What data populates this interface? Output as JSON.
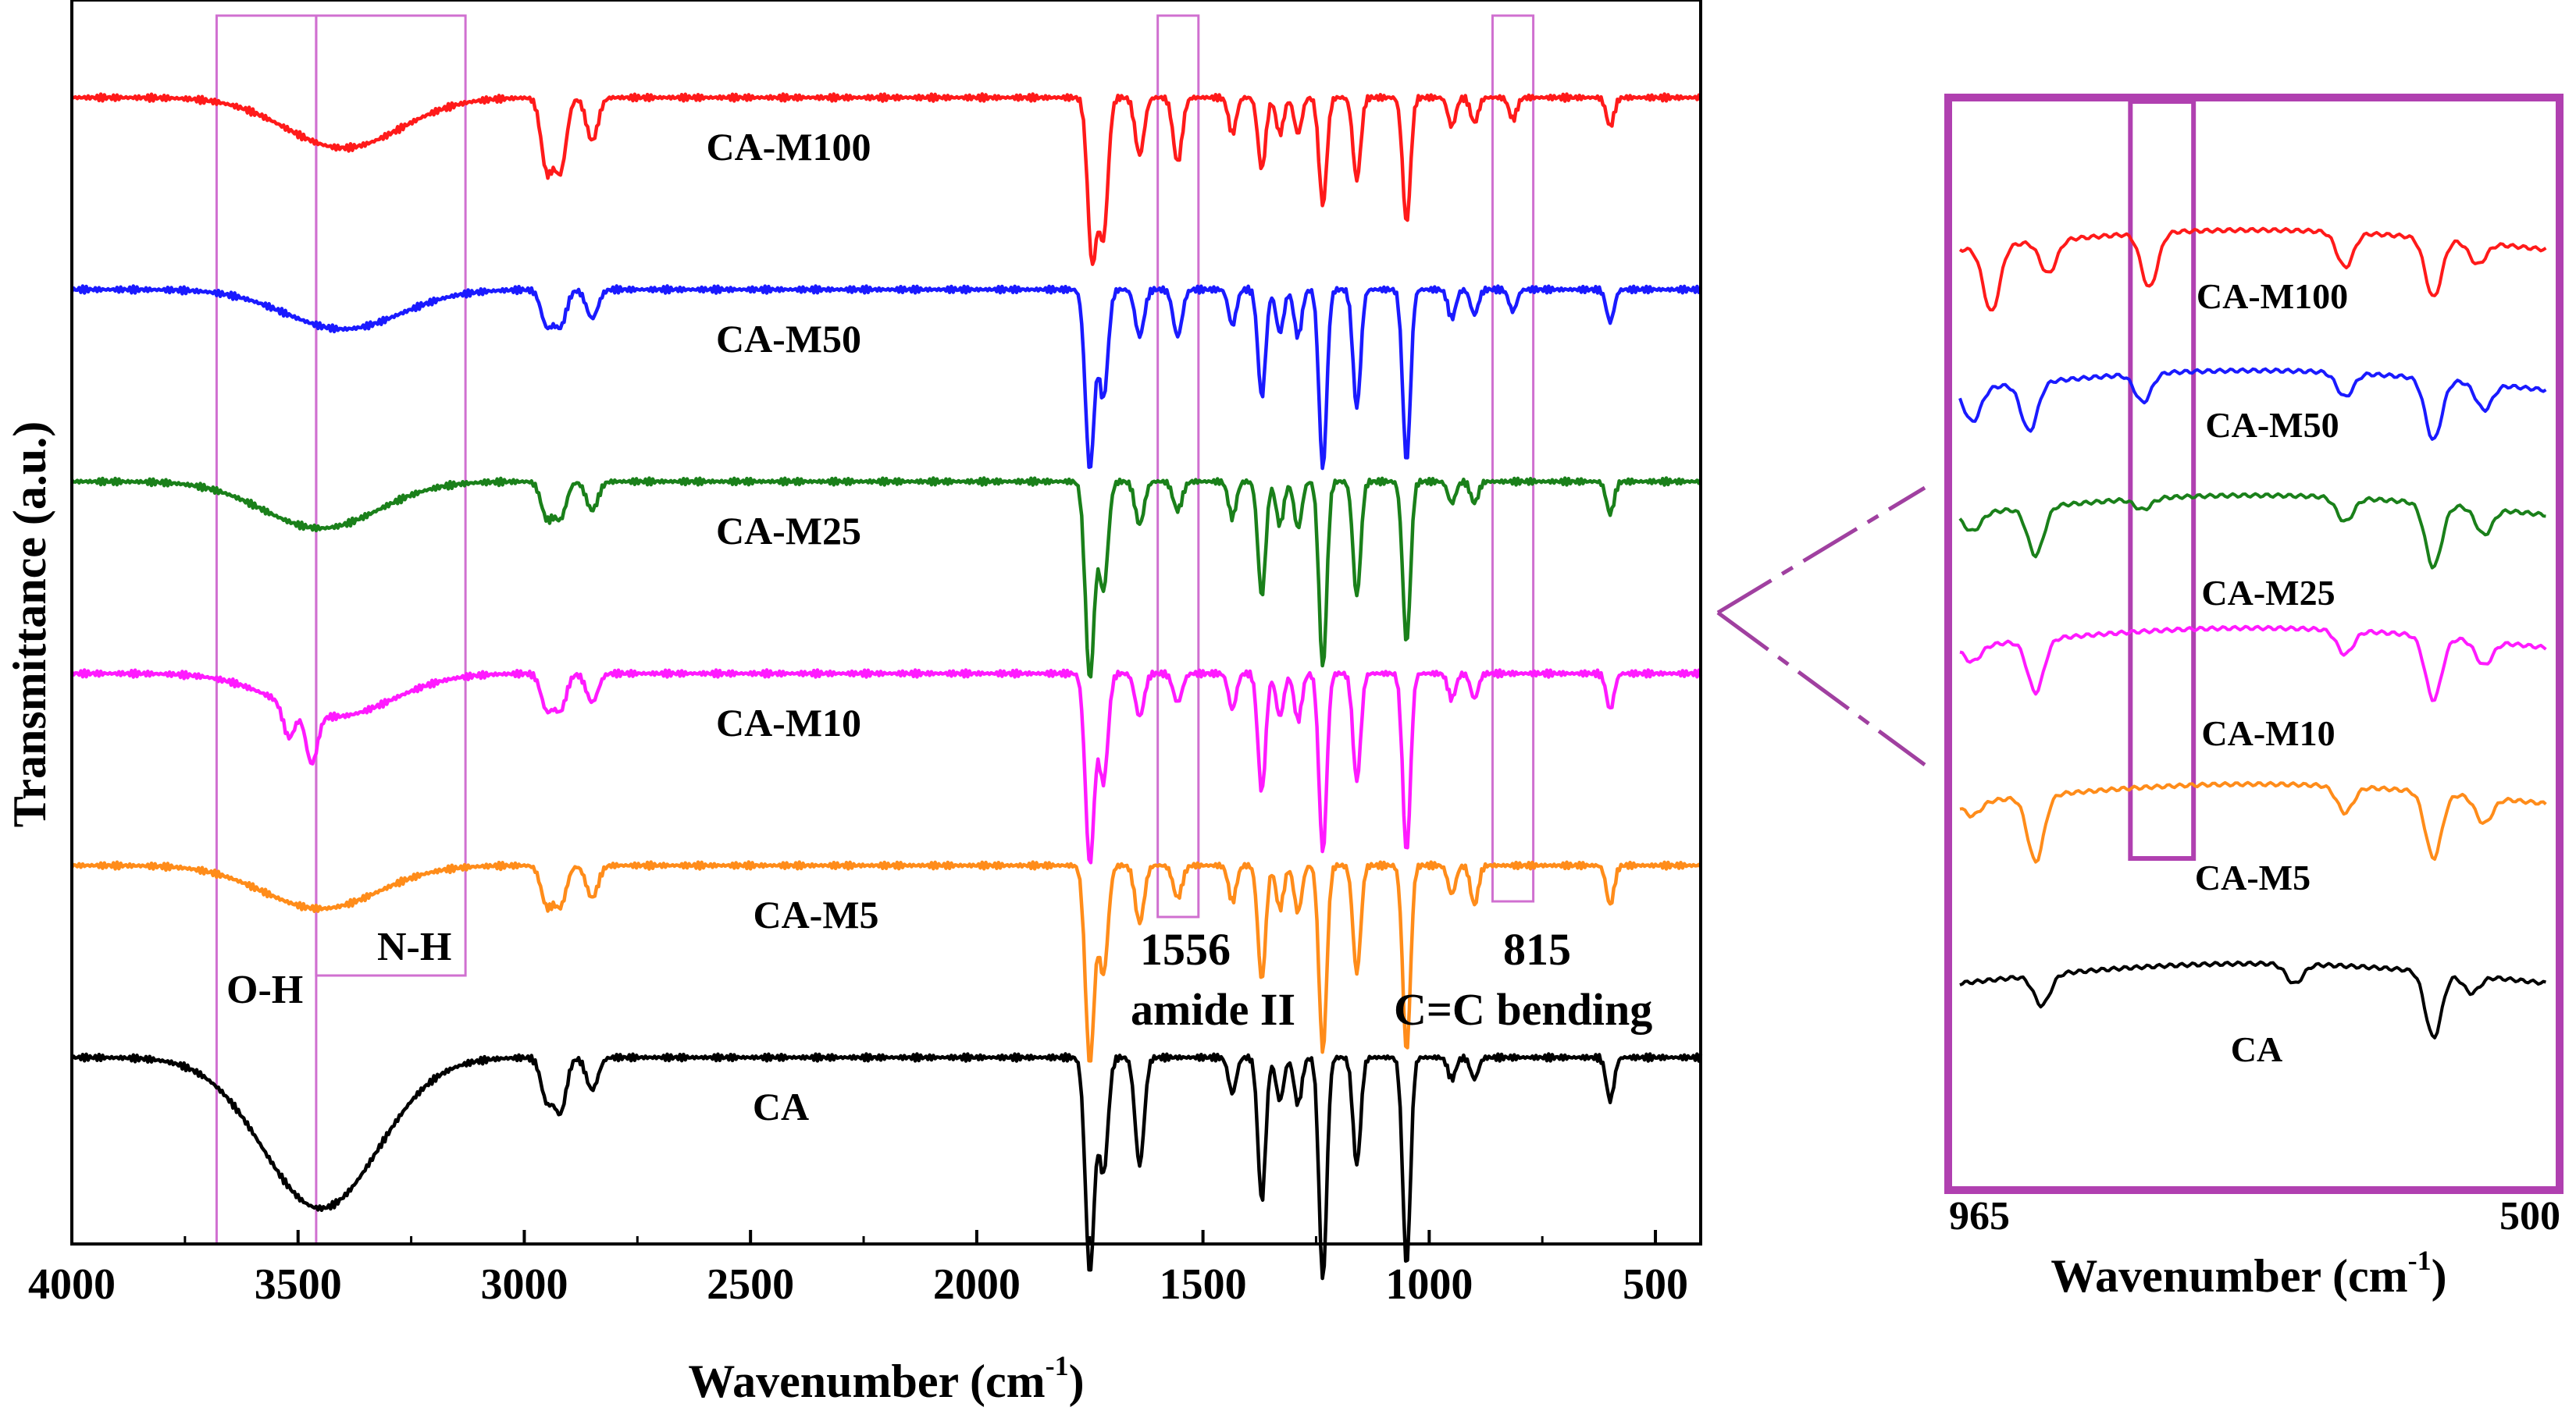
{
  "chart_data": [
    {
      "type": "line",
      "title": "",
      "xlabel_main": "Wavenumber (cm",
      "xlabel_sup": "-1",
      "xlabel_close": ")",
      "ylabel": "Transmittance (a.u.)",
      "xlim": [
        4000,
        400
      ],
      "xticks": [
        4000,
        3500,
        3000,
        2500,
        2000,
        1500,
        1000,
        500
      ],
      "yticks": [],
      "series_order_bottom_to_top": [
        "CA",
        "CA-M5",
        "CA-M10",
        "CA-M25",
        "CA-M50",
        "CA-M100"
      ],
      "series": [
        {
          "name": "CA-M100",
          "color": "#ff1a1a",
          "baseline": 5,
          "features": [
            [
              2950,
              2.0
            ],
            [
              2920,
              2.0
            ],
            [
              2850,
              1.2
            ],
            [
              1745,
              4.5
            ],
            [
              1720,
              3.8
            ],
            [
              1640,
              1.6
            ],
            [
              1556,
              1.8
            ],
            [
              1435,
              1.0
            ],
            [
              1370,
              2.0
            ],
            [
              1330,
              1.0
            ],
            [
              1290,
              1.0
            ],
            [
              1235,
              3.0
            ],
            [
              1160,
              2.3
            ],
            [
              1050,
              3.5
            ],
            [
              950,
              0.8
            ],
            [
              900,
              0.7
            ],
            [
              815,
              0.6
            ],
            [
              600,
              0.8
            ]
          ],
          "oh_band": [
            3400,
            1.4
          ]
        },
        {
          "name": "CA-M50",
          "color": "#1a1aff",
          "baseline": 4,
          "features": [
            [
              2950,
              1.0
            ],
            [
              2920,
              1.0
            ],
            [
              2850,
              0.8
            ],
            [
              1750,
              5.0
            ],
            [
              1720,
              3.0
            ],
            [
              1640,
              1.3
            ],
            [
              1556,
              1.3
            ],
            [
              1435,
              1.0
            ],
            [
              1370,
              3.0
            ],
            [
              1330,
              1.2
            ],
            [
              1290,
              1.3
            ],
            [
              1235,
              5.0
            ],
            [
              1160,
              3.3
            ],
            [
              1050,
              4.8
            ],
            [
              950,
              0.8
            ],
            [
              900,
              0.7
            ],
            [
              815,
              0.6
            ],
            [
              600,
              0.9
            ]
          ],
          "oh_band": [
            3400,
            1.1
          ]
        },
        {
          "name": "CA-M25",
          "color": "#1a801a",
          "baseline": 3,
          "features": [
            [
              2950,
              1.0
            ],
            [
              2920,
              1.0
            ],
            [
              2850,
              0.8
            ],
            [
              1750,
              5.5
            ],
            [
              1720,
              3.0
            ],
            [
              1640,
              1.2
            ],
            [
              1556,
              0.8
            ],
            [
              1435,
              1.0
            ],
            [
              1370,
              3.2
            ],
            [
              1330,
              1.2
            ],
            [
              1290,
              1.3
            ],
            [
              1235,
              5.2
            ],
            [
              1160,
              3.2
            ],
            [
              1050,
              4.5
            ],
            [
              950,
              0.6
            ],
            [
              900,
              0.6
            ],
            [
              600,
              0.9
            ]
          ],
          "oh_band": [
            3450,
            1.3
          ]
        },
        {
          "name": "CA-M10",
          "color": "#ff1aff",
          "baseline": 2,
          "features": [
            [
              3520,
              0.9
            ],
            [
              3470,
              1.4
            ],
            [
              2950,
              1.0
            ],
            [
              2920,
              1.0
            ],
            [
              2850,
              0.8
            ],
            [
              1750,
              5.3
            ],
            [
              1720,
              3.0
            ],
            [
              1640,
              1.2
            ],
            [
              1556,
              0.8
            ],
            [
              1435,
              1.0
            ],
            [
              1370,
              3.3
            ],
            [
              1330,
              1.2
            ],
            [
              1290,
              1.3
            ],
            [
              1235,
              5.0
            ],
            [
              1160,
              3.0
            ],
            [
              1050,
              5.0
            ],
            [
              950,
              0.7
            ],
            [
              900,
              0.7
            ],
            [
              600,
              1.0
            ]
          ],
          "oh_band": [
            3420,
            1.2
          ]
        },
        {
          "name": "CA-M5",
          "color": "#ff8c1a",
          "baseline": 1,
          "features": [
            [
              2950,
              1.1
            ],
            [
              2920,
              1.1
            ],
            [
              2850,
              0.9
            ],
            [
              1750,
              5.5
            ],
            [
              1720,
              3.0
            ],
            [
              1640,
              1.6
            ],
            [
              1556,
              0.9
            ],
            [
              1435,
              1.0
            ],
            [
              1370,
              3.2
            ],
            [
              1330,
              1.2
            ],
            [
              1290,
              1.3
            ],
            [
              1235,
              5.2
            ],
            [
              1160,
              3.0
            ],
            [
              1050,
              5.2
            ],
            [
              950,
              0.8
            ],
            [
              900,
              1.1
            ],
            [
              600,
              1.1
            ]
          ],
          "oh_band": [
            3450,
            1.2
          ]
        },
        {
          "name": "CA",
          "color": "#000000",
          "baseline": 0,
          "features": [
            [
              2950,
              1.2
            ],
            [
              2920,
              1.5
            ],
            [
              2850,
              0.9
            ],
            [
              1750,
              6.0
            ],
            [
              1720,
              3.2
            ],
            [
              1640,
              3.0
            ],
            [
              1435,
              1.0
            ],
            [
              1370,
              4.0
            ],
            [
              1330,
              1.2
            ],
            [
              1290,
              1.3
            ],
            [
              1235,
              6.2
            ],
            [
              1160,
              3.0
            ],
            [
              1050,
              5.8
            ],
            [
              950,
              0.6
            ],
            [
              900,
              0.6
            ],
            [
              600,
              1.2
            ]
          ],
          "oh_band": [
            3450,
            4.2
          ]
        }
      ],
      "annotations": {
        "oh": "O-H",
        "nh": "N-H",
        "amide_num": "1556",
        "amide_text": "amide II",
        "cc_num": "815",
        "cc_text": "C=C bending"
      },
      "highlight_regions": [
        {
          "name": "O-H",
          "range": [
            3680,
            3460
          ]
        },
        {
          "name": "N-H",
          "range": [
            3460,
            3130
          ]
        },
        {
          "name": "amide II",
          "range": [
            1600,
            1510
          ]
        },
        {
          "name": "C=C bending",
          "range": [
            860,
            770
          ]
        }
      ]
    },
    {
      "type": "line",
      "title": "inset",
      "xlabel_main": "Wavenumber (cm",
      "xlabel_sup": "-1",
      "xlabel_close": ")",
      "xlim": [
        965,
        500
      ],
      "xticks": [
        965,
        500
      ],
      "frame_color": "#b040b0",
      "highlight_range": [
        830,
        780
      ],
      "series": [
        {
          "name": "CA-M100",
          "color": "#ff1a1a",
          "features": [
            [
              940,
              3.0
            ],
            [
              895,
              1.5
            ],
            [
              815,
              2.5
            ],
            [
              660,
              1.6
            ],
            [
              590,
              2.7
            ],
            [
              555,
              1.0
            ]
          ]
        },
        {
          "name": "CA-M50",
          "color": "#1a1aff",
          "features": [
            [
              955,
              1.5
            ],
            [
              910,
              2.2
            ],
            [
              820,
              1.3
            ],
            [
              660,
              1.1
            ],
            [
              590,
              2.8
            ],
            [
              550,
              1.2
            ]
          ]
        },
        {
          "name": "CA-M25",
          "color": "#1a801a",
          "features": [
            [
              955,
              0.8
            ],
            [
              905,
              2.2
            ],
            [
              820,
              0.5
            ],
            [
              660,
              1.1
            ],
            [
              590,
              2.9
            ],
            [
              550,
              1.2
            ]
          ]
        },
        {
          "name": "CA-M10",
          "color": "#ff1aff",
          "features": [
            [
              955,
              0.7
            ],
            [
              905,
              2.4
            ],
            [
              660,
              1.1
            ],
            [
              590,
              2.9
            ],
            [
              550,
              1.1
            ]
          ]
        },
        {
          "name": "CA-M5",
          "color": "#ff8c1a",
          "features": [
            [
              955,
              0.6
            ],
            [
              905,
              3.0
            ],
            [
              660,
              1.2
            ],
            [
              590,
              3.0
            ],
            [
              550,
              1.2
            ]
          ]
        },
        {
          "name": "CA",
          "color": "#000000",
          "features": [
            [
              900,
              1.4
            ],
            [
              700,
              0.9
            ],
            [
              590,
              3.0
            ],
            [
              560,
              0.8
            ]
          ]
        }
      ]
    }
  ]
}
